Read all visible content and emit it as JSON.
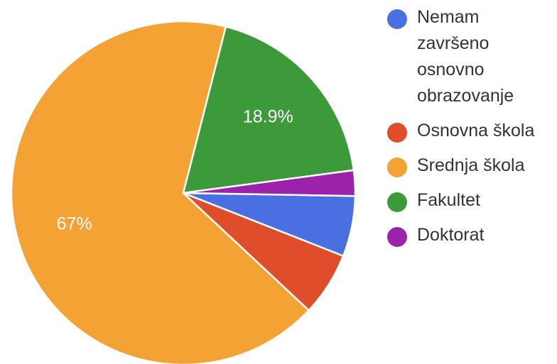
{
  "chart_data": {
    "type": "pie",
    "categories": [
      "Nemam završeno osnovno obrazovanje",
      "Osnovna škola",
      "Srednja škola",
      "Fakultet",
      "Doktorat"
    ],
    "values": [
      5.7,
      6.0,
      67.0,
      18.9,
      2.4
    ],
    "colors": [
      "#4a6fe3",
      "#e04d2b",
      "#f5a235",
      "#3d9a3b",
      "#9c22ab"
    ],
    "data_labels": [
      "",
      "",
      "67%",
      "18.9%",
      ""
    ],
    "legend": {
      "position": "right",
      "items": [
        {
          "label": "Nemam završeno osnovno obrazovanje",
          "color": "#4a6fe3"
        },
        {
          "label": "Osnovna škola",
          "color": "#e04d2b"
        },
        {
          "label": "Srednja škola",
          "color": "#f5a235"
        },
        {
          "label": "Fakultet",
          "color": "#3d9a3b"
        },
        {
          "label": "Doktorat",
          "color": "#9c22ab"
        }
      ]
    },
    "title": ""
  }
}
